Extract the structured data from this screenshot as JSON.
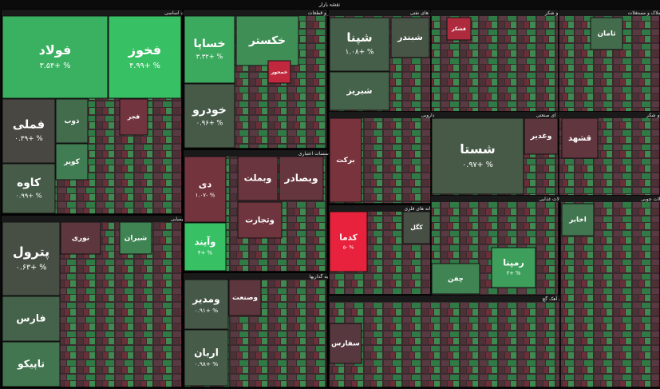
{
  "chart_data": {
    "type": "treemap",
    "title": "نقشه بازار",
    "sectors": [
      {
        "name": "فلزات اساسی",
        "tiles": [
          {
            "name": "فولاد",
            "value": 3.54,
            "value_label": "۳.۵۴+ %"
          },
          {
            "name": "فخوز",
            "value": 4.99,
            "value_label": "۴.۹۹+ %"
          },
          {
            "name": "فملی",
            "value": 0.39,
            "value_label": "۰.۳۹+ %"
          },
          {
            "name": "کاوه",
            "value": 0.99,
            "value_label": "۰.۹۹+ %"
          },
          {
            "name": "ذوب",
            "value": 1.5
          },
          {
            "name": "کویر",
            "value": 2
          },
          {
            "name": "فجر",
            "value": -1
          }
        ]
      },
      {
        "name": "شیمیایی",
        "tiles": [
          {
            "name": "پترول",
            "value": 0.63,
            "value_label": "۰.۶۳+ %"
          },
          {
            "name": "فارس",
            "value": 1.2
          },
          {
            "name": "تاپیکو",
            "value": 1.8
          },
          {
            "name": "نوری",
            "value": -0.5
          },
          {
            "name": "شیران",
            "value": 2.2
          }
        ]
      },
      {
        "name": "خودرو و قطعات",
        "tiles": [
          {
            "name": "خساپا",
            "value": 3.32,
            "value_label": "۳.۳۲+ %"
          },
          {
            "name": "خکستر",
            "value": 2.5
          },
          {
            "name": "خودرو",
            "value": 0.96,
            "value_label": "۰.۹۶+ %"
          },
          {
            "name": "خمحور",
            "value": -3
          }
        ]
      },
      {
        "name": "بانکها و موسسات اعتباری",
        "tiles": [
          {
            "name": "دی",
            "value": -1.07,
            "value_label": "۱.۰۷- %"
          },
          {
            "name": "وآیند",
            "value": 4,
            "value_label": "۴+ %"
          },
          {
            "name": "وبملت",
            "value": -0.8
          },
          {
            "name": "وبصادر",
            "value": -0.7
          },
          {
            "name": "وتجارت",
            "value": -0.9
          }
        ]
      },
      {
        "name": "سرمایه گذاریها",
        "tiles": [
          {
            "name": "ومدیر",
            "value": 0.91,
            "value_label": "۰.۹۱+ %"
          },
          {
            "name": "اربان",
            "value": 0.98,
            "value_label": "۰.۹۸+ %"
          },
          {
            "name": "وصنعت",
            "value": -0.5
          }
        ]
      },
      {
        "name": "فرآورده های نفتی",
        "tiles": [
          {
            "name": "شپنا",
            "value": 1.08,
            "value_label": "۱.۰۸+ %"
          },
          {
            "name": "شبندر",
            "value": 0.8
          },
          {
            "name": "شبریز",
            "value": 1.2
          }
        ]
      },
      {
        "name": "قند و شکر",
        "tiles": [
          {
            "name": "قشکر",
            "value": -2.5
          }
        ]
      },
      {
        "name": "انبوه سازی املاک و مستغلات",
        "tiles": [
          {
            "name": "ثامان",
            "value": 1.5
          }
        ]
      },
      {
        "name": "چندرشته ای صنعتی",
        "tiles": [
          {
            "name": "شستا",
            "value": 0.97,
            "value_label": "۰.۹۷+ %"
          },
          {
            "name": "وغدیر",
            "value": -0.5
          }
        ]
      },
      {
        "name": "دارویی",
        "tiles": [
          {
            "name": "برکت",
            "value": -1.2
          }
        ]
      },
      {
        "name": "قند و شکر",
        "tiles": [
          {
            "name": "قشهد",
            "value": -0.6
          }
        ]
      },
      {
        "name": "استخراج کانه های فلزی",
        "tiles": [
          {
            "name": "کدما",
            "value": -5,
            "value_label": "۵- %"
          },
          {
            "name": "کگل",
            "value": 0.6
          }
        ]
      },
      {
        "name": "محصولات غذایی",
        "tiles": [
          {
            "name": "رمپنا",
            "value": 3,
            "value_label": "۳+ %"
          },
          {
            "name": "چفن",
            "value": 2.2
          }
        ]
      },
      {
        "name": "سیمان آهک گچ",
        "tiles": [
          {
            "name": "سفارس",
            "value": -0.3
          }
        ]
      },
      {
        "name": "محصولات چوبی",
        "tiles": [
          {
            "name": "اخابر",
            "value": 1.8
          }
        ]
      }
    ]
  }
}
